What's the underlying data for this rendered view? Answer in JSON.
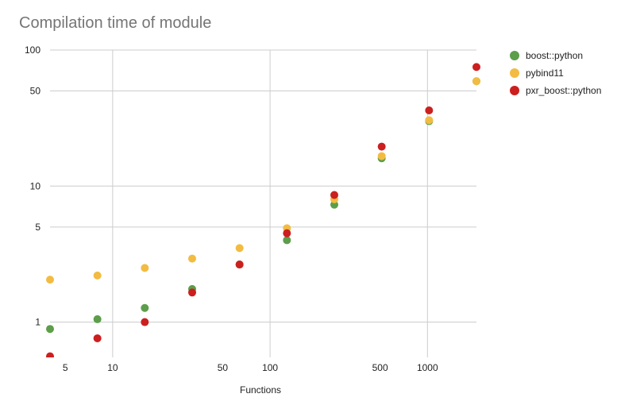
{
  "chart_data": {
    "type": "scatter",
    "title": "Compilation time of module",
    "xlabel": "Functions",
    "ylabel": "",
    "xscale": "log",
    "yscale": "log",
    "xlim": [
      4,
      2048
    ],
    "ylim": [
      0.55,
      100
    ],
    "xticks": [
      5,
      10,
      50,
      100,
      500,
      1000
    ],
    "yticks": [
      1,
      5,
      10,
      50,
      100
    ],
    "x_gridlines": [
      10,
      100,
      1000
    ],
    "grid": true,
    "legend_position": "right",
    "series": [
      {
        "name": "boost::python",
        "color": "#5c9e4a",
        "points": [
          [
            4,
            0.89
          ],
          [
            8,
            1.05
          ],
          [
            16,
            1.27
          ],
          [
            32,
            1.75
          ],
          [
            64,
            2.65
          ],
          [
            128,
            4.0
          ],
          [
            256,
            7.3
          ],
          [
            512,
            16.0
          ],
          [
            1024,
            30.0
          ],
          [
            2048,
            59.0
          ]
        ]
      },
      {
        "name": "pybind11",
        "color": "#f2bc42",
        "points": [
          [
            4,
            2.05
          ],
          [
            8,
            2.2
          ],
          [
            16,
            2.5
          ],
          [
            32,
            2.93
          ],
          [
            64,
            3.5
          ],
          [
            128,
            4.9
          ],
          [
            256,
            8.0
          ],
          [
            512,
            16.6
          ],
          [
            1024,
            30.5
          ],
          [
            2048,
            59.0
          ]
        ]
      },
      {
        "name": "pxr_boost::python",
        "color": "#cc1f1f",
        "points": [
          [
            4,
            0.56
          ],
          [
            8,
            0.76
          ],
          [
            16,
            1.0
          ],
          [
            32,
            1.65
          ],
          [
            64,
            2.65
          ],
          [
            128,
            4.5
          ],
          [
            256,
            8.6
          ],
          [
            512,
            19.5
          ],
          [
            1024,
            36.0
          ],
          [
            2048,
            75.0
          ]
        ]
      }
    ]
  }
}
